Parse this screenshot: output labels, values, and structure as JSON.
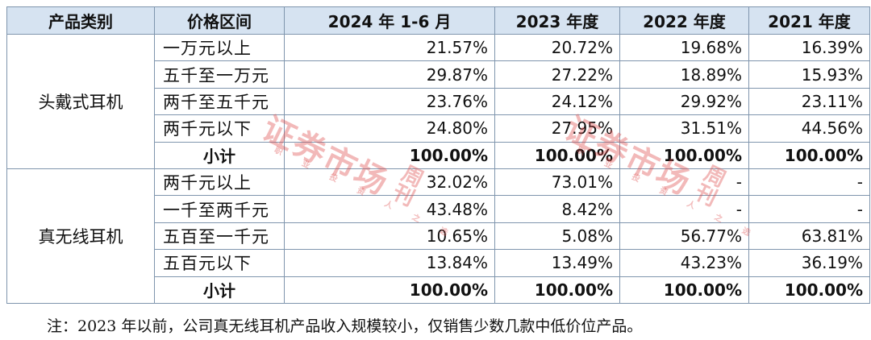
{
  "table": {
    "headers": [
      "产品类别",
      "价格区间",
      "2024 年 1-6 月",
      "2023 年度",
      "2022 年度",
      "2021 年度"
    ],
    "groups": [
      {
        "category": "头戴式耳机",
        "rows": [
          {
            "range": "一万元以上",
            "values": [
              "21.57%",
              "20.72%",
              "19.68%",
              "16.39%"
            ]
          },
          {
            "range": "五千至一万元",
            "values": [
              "29.87%",
              "27.22%",
              "18.89%",
              "15.93%"
            ]
          },
          {
            "range": "两千至五千元",
            "values": [
              "23.76%",
              "24.12%",
              "29.92%",
              "23.11%"
            ]
          },
          {
            "range": "两千元以下",
            "values": [
              "24.80%",
              "27.95%",
              "31.51%",
              "44.56%"
            ]
          }
        ],
        "subtotal": {
          "label": "小计",
          "values": [
            "100.00%",
            "100.00%",
            "100.00%",
            "100.00%"
          ]
        }
      },
      {
        "category": "真无线耳机",
        "rows": [
          {
            "range": "两千元以上",
            "values": [
              "32.02%",
              "73.01%",
              "-",
              "-"
            ]
          },
          {
            "range": "一千至两千元",
            "values": [
              "43.48%",
              "8.42%",
              "-",
              "-"
            ]
          },
          {
            "range": "五百至一千元",
            "values": [
              "10.65%",
              "5.08%",
              "56.77%",
              "63.81%"
            ]
          },
          {
            "range": "五百元以下",
            "values": [
              "13.84%",
              "13.49%",
              "43.23%",
              "36.19%"
            ]
          }
        ],
        "subtotal": {
          "label": "小计",
          "values": [
            "100.00%",
            "100.00%",
            "100.00%",
            "100.00%"
          ]
        }
      }
    ]
  },
  "note": "注：2023 年以前，公司真无线耳机产品收入规模较小，仅销售少数几款中低价位产品。",
  "watermark": {
    "title": "证券市场",
    "side": "周刊",
    "tagline": "职业投资人之选"
  }
}
